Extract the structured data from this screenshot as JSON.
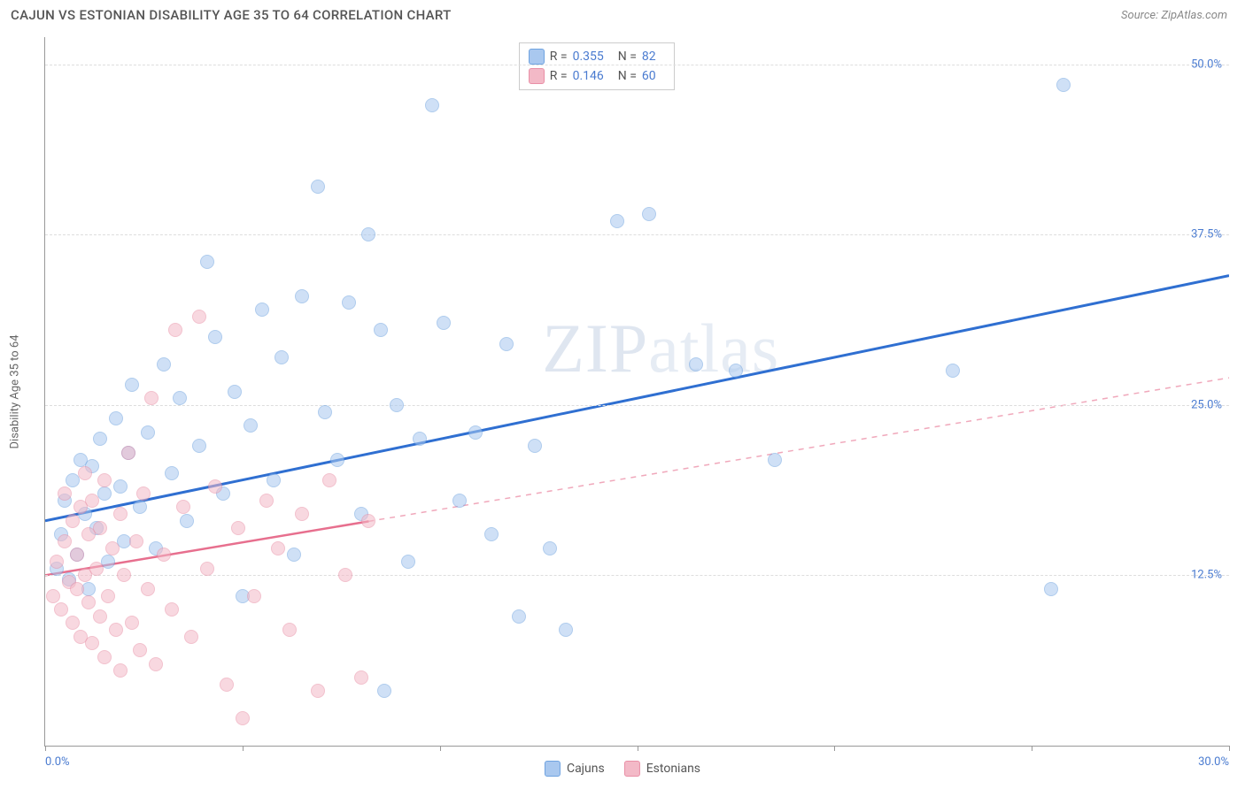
{
  "header": {
    "title": "CAJUN VS ESTONIAN DISABILITY AGE 35 TO 64 CORRELATION CHART",
    "source_prefix": "Source: ",
    "source_name": "ZipAtlas.com"
  },
  "watermark": {
    "bold": "ZIP",
    "thin": "atlas"
  },
  "chart": {
    "type": "scatter",
    "ylabel": "Disability Age 35 to 64",
    "xlim": [
      0,
      30
    ],
    "ylim": [
      0,
      52
    ],
    "x_ticks": [
      0,
      5,
      10,
      15,
      20,
      25,
      30
    ],
    "x_tick_labels": {
      "0": "0.0%",
      "30": "30.0%"
    },
    "y_ticks": [
      12.5,
      25.0,
      37.5,
      50.0
    ],
    "y_tick_labels": [
      "12.5%",
      "25.0%",
      "37.5%",
      "50.0%"
    ],
    "background_color": "#ffffff",
    "grid_color": "#dddddd",
    "axis_color": "#999999",
    "label_color": "#4a7bd0",
    "marker_size": 16,
    "series": [
      {
        "name": "Cajuns",
        "color_fill": "#a9c8ef",
        "color_stroke": "#6fa3e0",
        "trend_color": "#2f6fd1",
        "trend_width": 3,
        "trend_dash": "none",
        "R": "0.355",
        "N": "82",
        "trend": {
          "x1": 0,
          "y1": 16.5,
          "x2": 30,
          "y2": 34.5
        },
        "points": [
          [
            0.3,
            13.0
          ],
          [
            0.4,
            15.5
          ],
          [
            0.5,
            18.0
          ],
          [
            0.6,
            12.2
          ],
          [
            0.7,
            19.5
          ],
          [
            0.8,
            14.0
          ],
          [
            0.9,
            21.0
          ],
          [
            1.0,
            17.0
          ],
          [
            1.1,
            11.5
          ],
          [
            1.2,
            20.5
          ],
          [
            1.3,
            16.0
          ],
          [
            1.4,
            22.5
          ],
          [
            1.5,
            18.5
          ],
          [
            1.6,
            13.5
          ],
          [
            1.8,
            24.0
          ],
          [
            1.9,
            19.0
          ],
          [
            2.0,
            15.0
          ],
          [
            2.1,
            21.5
          ],
          [
            2.2,
            26.5
          ],
          [
            2.4,
            17.5
          ],
          [
            2.6,
            23.0
          ],
          [
            2.8,
            14.5
          ],
          [
            3.0,
            28.0
          ],
          [
            3.2,
            20.0
          ],
          [
            3.4,
            25.5
          ],
          [
            3.6,
            16.5
          ],
          [
            3.9,
            22.0
          ],
          [
            4.1,
            35.5
          ],
          [
            4.3,
            30.0
          ],
          [
            4.5,
            18.5
          ],
          [
            4.8,
            26.0
          ],
          [
            5.0,
            11.0
          ],
          [
            5.2,
            23.5
          ],
          [
            5.5,
            32.0
          ],
          [
            5.8,
            19.5
          ],
          [
            6.0,
            28.5
          ],
          [
            6.3,
            14.0
          ],
          [
            6.5,
            33.0
          ],
          [
            6.9,
            41.0
          ],
          [
            7.1,
            24.5
          ],
          [
            7.4,
            21.0
          ],
          [
            7.7,
            32.5
          ],
          [
            8.0,
            17.0
          ],
          [
            8.2,
            37.5
          ],
          [
            8.5,
            30.5
          ],
          [
            8.6,
            4.0
          ],
          [
            8.9,
            25.0
          ],
          [
            9.2,
            13.5
          ],
          [
            9.5,
            22.5
          ],
          [
            9.8,
            47.0
          ],
          [
            10.1,
            31.0
          ],
          [
            10.5,
            18.0
          ],
          [
            10.9,
            23.0
          ],
          [
            11.3,
            15.5
          ],
          [
            11.7,
            29.5
          ],
          [
            12.0,
            9.5
          ],
          [
            12.4,
            22.0
          ],
          [
            12.8,
            14.5
          ],
          [
            13.2,
            8.5
          ],
          [
            14.5,
            38.5
          ],
          [
            15.3,
            39.0
          ],
          [
            16.5,
            28.0
          ],
          [
            17.5,
            27.5
          ],
          [
            18.5,
            21.0
          ],
          [
            23.0,
            27.5
          ],
          [
            25.5,
            11.5
          ],
          [
            25.8,
            48.5
          ]
        ]
      },
      {
        "name": "Estonians",
        "color_fill": "#f3b9c7",
        "color_stroke": "#e98fa6",
        "trend_color": "#e76f8e",
        "trend_width": 2.5,
        "trend_dash": "solid_then_dash",
        "trend_solid_until_x": 8.2,
        "R": "0.146",
        "N": "60",
        "trend": {
          "x1": 0,
          "y1": 12.5,
          "x2": 30,
          "y2": 27.0
        },
        "points": [
          [
            0.2,
            11.0
          ],
          [
            0.3,
            13.5
          ],
          [
            0.4,
            10.0
          ],
          [
            0.5,
            15.0
          ],
          [
            0.5,
            18.5
          ],
          [
            0.6,
            12.0
          ],
          [
            0.7,
            9.0
          ],
          [
            0.7,
            16.5
          ],
          [
            0.8,
            11.5
          ],
          [
            0.8,
            14.0
          ],
          [
            0.9,
            8.0
          ],
          [
            0.9,
            17.5
          ],
          [
            1.0,
            12.5
          ],
          [
            1.0,
            20.0
          ],
          [
            1.1,
            10.5
          ],
          [
            1.1,
            15.5
          ],
          [
            1.2,
            7.5
          ],
          [
            1.2,
            18.0
          ],
          [
            1.3,
            13.0
          ],
          [
            1.4,
            9.5
          ],
          [
            1.4,
            16.0
          ],
          [
            1.5,
            6.5
          ],
          [
            1.5,
            19.5
          ],
          [
            1.6,
            11.0
          ],
          [
            1.7,
            14.5
          ],
          [
            1.8,
            8.5
          ],
          [
            1.9,
            17.0
          ],
          [
            1.9,
            5.5
          ],
          [
            2.0,
            12.5
          ],
          [
            2.1,
            21.5
          ],
          [
            2.2,
            9.0
          ],
          [
            2.3,
            15.0
          ],
          [
            2.4,
            7.0
          ],
          [
            2.5,
            18.5
          ],
          [
            2.6,
            11.5
          ],
          [
            2.7,
            25.5
          ],
          [
            2.8,
            6.0
          ],
          [
            3.0,
            14.0
          ],
          [
            3.2,
            10.0
          ],
          [
            3.3,
            30.5
          ],
          [
            3.5,
            17.5
          ],
          [
            3.7,
            8.0
          ],
          [
            3.9,
            31.5
          ],
          [
            4.1,
            13.0
          ],
          [
            4.3,
            19.0
          ],
          [
            4.6,
            4.5
          ],
          [
            4.9,
            16.0
          ],
          [
            5.0,
            2.0
          ],
          [
            5.3,
            11.0
          ],
          [
            5.6,
            18.0
          ],
          [
            5.9,
            14.5
          ],
          [
            6.2,
            8.5
          ],
          [
            6.5,
            17.0
          ],
          [
            6.9,
            4.0
          ],
          [
            7.2,
            19.5
          ],
          [
            7.6,
            12.5
          ],
          [
            8.0,
            5.0
          ],
          [
            8.2,
            16.5
          ]
        ]
      }
    ]
  },
  "legend_bottom": [
    {
      "label": "Cajuns",
      "fill": "#a9c8ef",
      "stroke": "#6fa3e0"
    },
    {
      "label": "Estonians",
      "fill": "#f3b9c7",
      "stroke": "#e98fa6"
    }
  ]
}
